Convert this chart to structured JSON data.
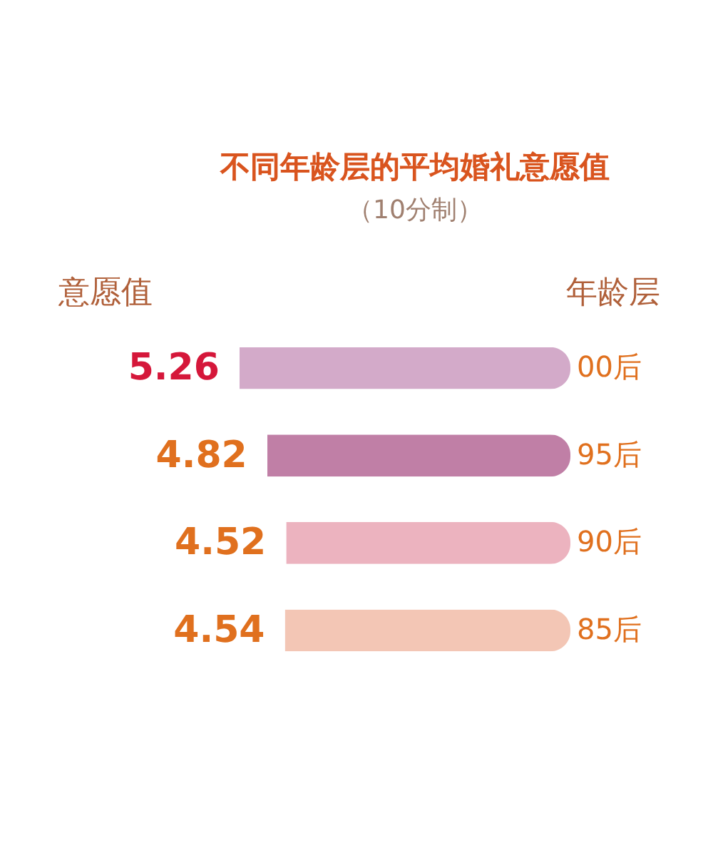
{
  "chart_data": {
    "type": "bar",
    "orientation": "horizontal",
    "title": "不同年龄层的平均婚礼意愿值",
    "subtitle": "（10分制）",
    "xlabel": "意愿值",
    "ylabel": "年龄层",
    "categories": [
      "00后",
      "95后",
      "90后",
      "85后"
    ],
    "values": [
      5.26,
      4.82,
      4.52,
      4.54
    ],
    "colors": [
      "#d3aac9",
      "#c07fa6",
      "#ecb3bf",
      "#f3c6b5"
    ],
    "data_labels": true
  }
}
